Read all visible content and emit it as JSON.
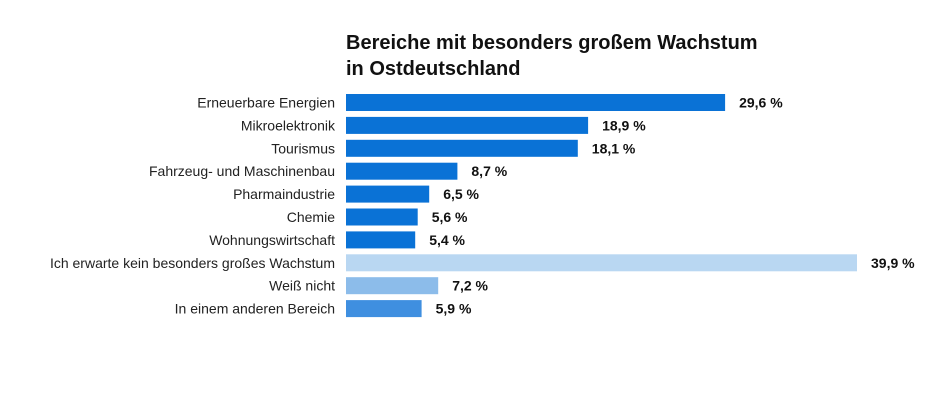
{
  "chart_data": {
    "type": "bar",
    "orientation": "horizontal",
    "title_lines": [
      "Bereiche mit besonders großem Wachstum",
      "in Ostdeutschland"
    ],
    "unit": "%",
    "categories": [
      "Erneuerbare Energien",
      "Mikroelektronik",
      "Tourismus",
      "Fahrzeug- und Maschinenbau",
      "Pharmaindustrie",
      "Chemie",
      "Wohnungswirtschaft",
      "Ich erwarte kein besonders großes Wachstum",
      "Weiß nicht",
      "In einem anderen Bereich"
    ],
    "values": [
      29.6,
      18.9,
      18.1,
      8.7,
      6.5,
      5.6,
      5.4,
      39.9,
      7.2,
      5.9
    ],
    "value_labels": [
      "29,6 %",
      "18,9 %",
      "18,1 %",
      "8,7 %",
      "6,5 %",
      "5,6 %",
      "5,4 %",
      "39,9 %",
      "7,2 %",
      "5,9 %"
    ],
    "bar_colors": [
      "#0a72d6",
      "#0a72d6",
      "#0a72d6",
      "#0a72d6",
      "#0a72d6",
      "#0a72d6",
      "#0a72d6",
      "#b9d7f2",
      "#8cbcea",
      "#3f8fe0"
    ],
    "xlim": [
      0,
      39.9
    ],
    "grid": false,
    "legend": "none"
  }
}
